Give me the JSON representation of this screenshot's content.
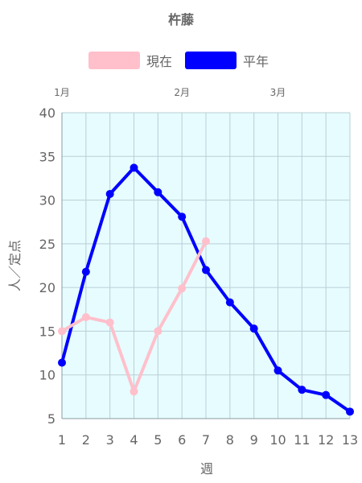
{
  "chart_data": {
    "type": "line",
    "title": "杵藤",
    "xlabel": "週",
    "ylabel": "人／定点",
    "ylim": [
      5,
      40
    ],
    "yticks": [
      5,
      10,
      15,
      20,
      25,
      30,
      35,
      40
    ],
    "x": [
      1,
      2,
      3,
      4,
      5,
      6,
      7,
      8,
      9,
      10,
      11,
      12,
      13
    ],
    "month_labels": [
      {
        "label": "1月",
        "week": 1
      },
      {
        "label": "2月",
        "week": 6
      },
      {
        "label": "3月",
        "week": 10
      }
    ],
    "plot_background": "#e6fcff",
    "grid": true,
    "legend_position": "top",
    "series": [
      {
        "name": "現在",
        "color": "#ffc0cb",
        "x": [
          1,
          2,
          3,
          4,
          5,
          6,
          7
        ],
        "values": [
          15.0,
          16.6,
          16.0,
          8.1,
          15.0,
          19.9,
          25.3
        ]
      },
      {
        "name": "平年",
        "color": "#0000ff",
        "x": [
          1,
          2,
          3,
          4,
          5,
          6,
          7,
          8,
          9,
          10,
          11,
          12,
          13
        ],
        "values": [
          11.4,
          21.8,
          30.7,
          33.7,
          30.9,
          28.1,
          22.0,
          18.3,
          15.3,
          10.5,
          8.3,
          7.7,
          5.8
        ]
      }
    ]
  }
}
